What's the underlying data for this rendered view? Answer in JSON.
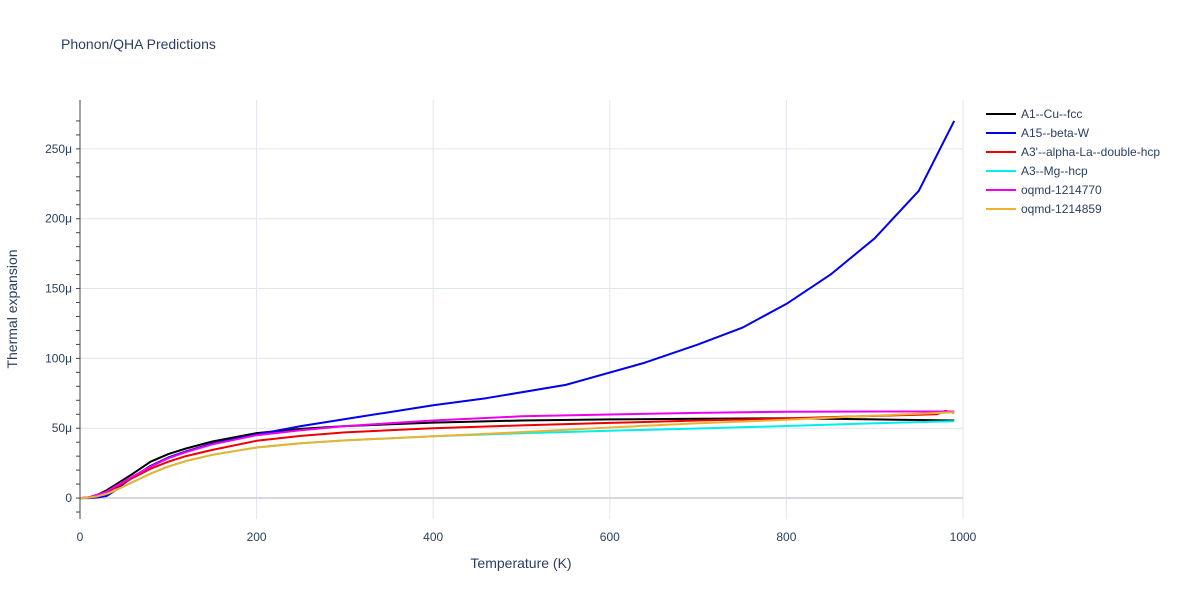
{
  "chart_data": {
    "type": "line",
    "title": "Phonon/QHA Predictions",
    "xlabel": "Temperature (K)",
    "ylabel": "Thermal expansion",
    "xlim": [
      0,
      1000
    ],
    "ylim": [
      -1.5e-05,
      0.000285
    ],
    "x_ticks": [
      {
        "value": 0,
        "label": "0"
      },
      {
        "value": 200,
        "label": "200"
      },
      {
        "value": 400,
        "label": "400"
      },
      {
        "value": 600,
        "label": "600"
      },
      {
        "value": 800,
        "label": "800"
      },
      {
        "value": 1000,
        "label": "1000"
      }
    ],
    "y_ticks": [
      {
        "value": 0,
        "label": "0"
      },
      {
        "value": 5e-05,
        "label": "50μ"
      },
      {
        "value": 0.0001,
        "label": "100μ"
      },
      {
        "value": 0.00015,
        "label": "150μ"
      },
      {
        "value": 0.0002,
        "label": "200μ"
      },
      {
        "value": 0.00025,
        "label": "250μ"
      }
    ],
    "grid": true,
    "legend_position": "right",
    "series": [
      {
        "name": "A1--Cu--fcc",
        "color": "#000000",
        "x": [
          0,
          10,
          20,
          30,
          40,
          50,
          60,
          80,
          100,
          120,
          150,
          200,
          250,
          300,
          400,
          500,
          600,
          700,
          800,
          900,
          990
        ],
        "y": [
          0,
          5e-07,
          2.5e-06,
          5.5e-06,
          9.5e-06,
          1.35e-05,
          1.75e-05,
          2.6e-05,
          3.15e-05,
          3.55e-05,
          4.05e-05,
          4.65e-05,
          4.95e-05,
          5.15e-05,
          5.4e-05,
          5.55e-05,
          5.63e-05,
          5.68e-05,
          5.72e-05,
          5.63e-05,
          5.55e-05
        ]
      },
      {
        "name": "A15--beta-W",
        "color": "#0000ee",
        "x": [
          0,
          10,
          20,
          30,
          40,
          50,
          60,
          80,
          100,
          120,
          150,
          200,
          250,
          300,
          350,
          400,
          460,
          550,
          640,
          700,
          750,
          800,
          850,
          900,
          950,
          990
        ],
        "y": [
          0,
          0,
          5e-07,
          1.5e-06,
          5.5e-06,
          1.05e-05,
          1.5e-05,
          2.3e-05,
          2.9e-05,
          3.35e-05,
          3.9e-05,
          4.55e-05,
          5.15e-05,
          5.65e-05,
          6.15e-05,
          6.65e-05,
          7.15e-05,
          8.1e-05,
          9.7e-05,
          0.00011,
          0.000122,
          0.000139,
          0.00016,
          0.000186,
          0.00022,
          0.00027
        ]
      },
      {
        "name": "A3'--alpha-La--double-hcp",
        "color": "#ee0000",
        "x": [
          0,
          10,
          20,
          30,
          40,
          50,
          60,
          80,
          100,
          120,
          150,
          200,
          250,
          300,
          400,
          500,
          600,
          700,
          800,
          900,
          970,
          980,
          990
        ],
        "y": [
          0,
          4e-07,
          1.8e-06,
          4e-06,
          7.5e-06,
          1.1e-05,
          1.45e-05,
          2.1e-05,
          2.6e-05,
          3e-05,
          3.45e-05,
          4.1e-05,
          4.45e-05,
          4.7e-05,
          5e-05,
          5.2e-05,
          5.38e-05,
          5.55e-05,
          5.7e-05,
          5.88e-05,
          6e-05,
          6.25e-05,
          6.1e-05
        ]
      },
      {
        "name": "A3--Mg--hcp",
        "color": "#00eeee",
        "x": [
          0,
          10,
          20,
          30,
          40,
          50,
          60,
          80,
          100,
          120,
          150,
          200,
          250,
          300,
          400,
          500,
          600,
          700,
          800,
          900,
          990
        ],
        "y": [
          0,
          3e-07,
          1.3e-06,
          3e-06,
          5.5e-06,
          8.5e-06,
          1.15e-05,
          1.75e-05,
          2.25e-05,
          2.65e-05,
          3.1e-05,
          3.62e-05,
          3.92e-05,
          4.13e-05,
          4.42e-05,
          4.64e-05,
          4.82e-05,
          4.98e-05,
          5.16e-05,
          5.35e-05,
          5.5e-05
        ]
      },
      {
        "name": "oqmd-1214770",
        "color": "#ee00ee",
        "x": [
          0,
          10,
          20,
          30,
          40,
          50,
          60,
          80,
          100,
          120,
          150,
          200,
          250,
          300,
          400,
          500,
          600,
          700,
          800,
          900,
          990
        ],
        "y": [
          0,
          5e-07,
          2.5e-06,
          4.5e-06,
          8.5e-06,
          1.2e-05,
          1.55e-05,
          2.25e-05,
          2.85e-05,
          3.3e-05,
          3.85e-05,
          4.5e-05,
          4.85e-05,
          5.15e-05,
          5.55e-05,
          5.85e-05,
          5.98e-05,
          6.1e-05,
          6.18e-05,
          6.2e-05,
          6.2e-05
        ]
      },
      {
        "name": "oqmd-1214859",
        "color": "#ecb22e",
        "x": [
          0,
          10,
          20,
          30,
          40,
          50,
          60,
          80,
          100,
          120,
          150,
          200,
          250,
          300,
          400,
          500,
          600,
          700,
          800,
          900,
          990
        ],
        "y": [
          0,
          3e-07,
          1.3e-06,
          3e-06,
          5.5e-06,
          8.5e-06,
          1.15e-05,
          1.75e-05,
          2.25e-05,
          2.65e-05,
          3.1e-05,
          3.62e-05,
          3.92e-05,
          4.13e-05,
          4.42e-05,
          4.72e-05,
          5.05e-05,
          5.35e-05,
          5.6e-05,
          5.9e-05,
          6.15e-05
        ]
      }
    ]
  }
}
